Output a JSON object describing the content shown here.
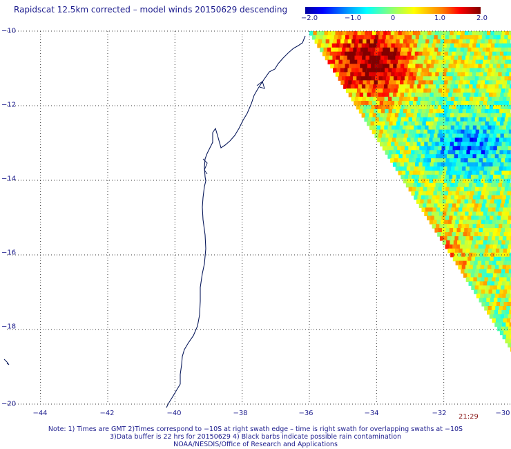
{
  "title": "Rapidscat 12.5km corrected – model winds 20150629 descending",
  "colorbar": {
    "labels": [
      "−2.0",
      "−1.0",
      "0",
      "1.0",
      "2.0"
    ],
    "label_values": [
      -2.0,
      -1.0,
      0,
      1.0,
      2.0
    ],
    "range": [
      -2.0,
      2.0
    ],
    "colors": [
      "#0000a0",
      "#0000ff",
      "#00a0ff",
      "#00ffff",
      "#80ff80",
      "#ffff00",
      "#ff8000",
      "#ff0000",
      "#800000"
    ]
  },
  "map": {
    "lat_range": [
      -20,
      -10
    ],
    "lon_range": [
      -45,
      -30
    ],
    "lat_ticks": [
      -10,
      -12,
      -14,
      -16,
      -18,
      -20
    ],
    "lat_labels": [
      "−10",
      "−12",
      "−14",
      "−16",
      "−18",
      "−20"
    ],
    "lon_ticks": [
      -44,
      -42,
      -40,
      -38,
      -36,
      -34,
      -32,
      -30
    ],
    "lon_labels": [
      "−44",
      "−42",
      "−40",
      "−38",
      "−36",
      "−34",
      "−32",
      "−30"
    ],
    "grid": "dotted",
    "coastline_color": "#0a1a5c",
    "swath_time": "21:29"
  },
  "notes": [
    "Note: 1) Times are GMT 2)Times correspond to −10S at right swath edge – time is right swath for overlapping swaths at −10S",
    "3)Data buffer is 22 hrs for 20150629 4) Black barbs indicate possible rain contamination",
    "NOAA/NESDIS/Office of Research and Applications"
  ]
}
